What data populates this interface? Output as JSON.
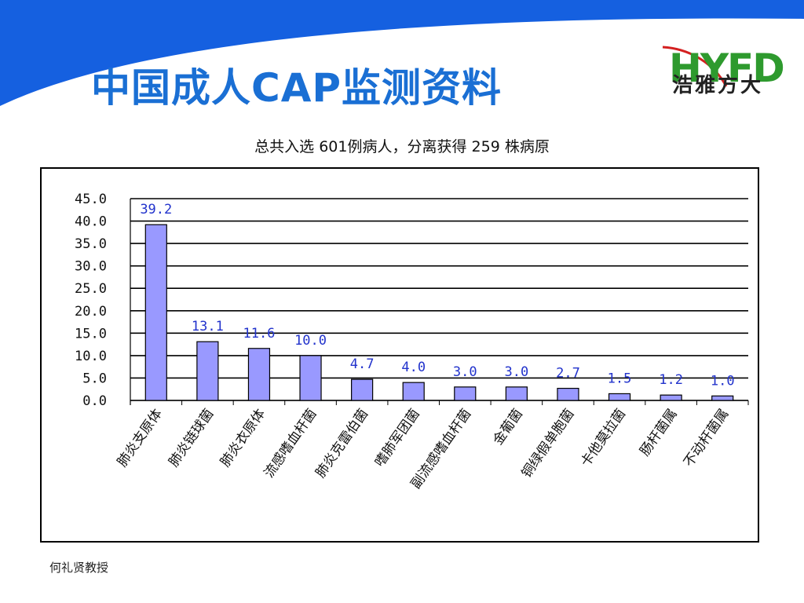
{
  "slide": {
    "title": "中国成人CAP监测资料",
    "subtitle": "总共入选 601例病人，分离获得 259 株病原",
    "footer": "何礼贤教授",
    "logo_letters": "HYFD",
    "logo_text": "浩雅方大",
    "colors": {
      "title": "#1a6fd4",
      "banner": "#1560e0",
      "bar_fill": "#9999ff",
      "data_label": "#2233cc"
    }
  },
  "chart_data": {
    "type": "bar",
    "title": "",
    "xlabel": "",
    "ylabel": "",
    "ylim": [
      0,
      45
    ],
    "yticks": [
      "0.0",
      "5.0",
      "10.0",
      "15.0",
      "20.0",
      "25.0",
      "30.0",
      "35.0",
      "40.0",
      "45.0"
    ],
    "grid": true,
    "categories": [
      "肺炎支原体",
      "肺炎链球菌",
      "肺炎衣原体",
      "流感嗜血杆菌",
      "肺炎克雷伯菌",
      "嗜肺军团菌",
      "副流感嗜血杆菌",
      "金葡菌",
      "铜绿假单胞菌",
      "卡他莫拉菌",
      "肠杆菌属",
      "不动杆菌属"
    ],
    "values": [
      39.2,
      13.1,
      11.6,
      10.0,
      4.7,
      4.0,
      3.0,
      3.0,
      2.7,
      1.5,
      1.2,
      1.0
    ],
    "data_labels": [
      "39.2",
      "13.1",
      "11.6",
      "10.0",
      "4.7",
      "4.0",
      "3.0",
      "3.0",
      "2.7",
      "1.5",
      "1.2",
      "1.0"
    ]
  }
}
